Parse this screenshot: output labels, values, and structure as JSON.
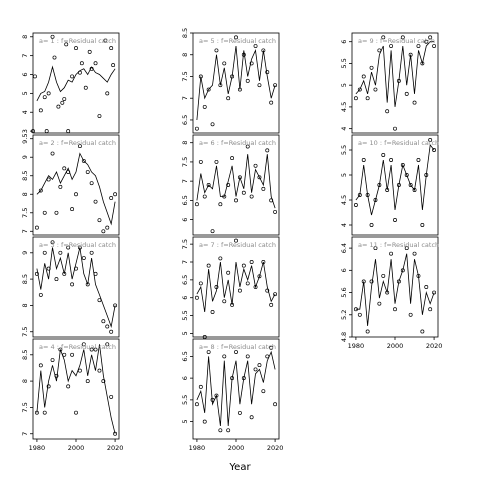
{
  "xlabel": "Year",
  "colors": {
    "axis": "#000000",
    "panel_label": "#8c8c8c",
    "line": "#000000",
    "background": "#ffffff"
  },
  "chart_data": [
    {
      "type": "scatter",
      "title": "a= 1  :  f=Residual catch",
      "xlim": [
        1978,
        2022
      ],
      "ylim": [
        2.9,
        8.2
      ],
      "yticks": [
        3,
        4,
        5,
        6,
        7,
        8
      ],
      "xticks": [],
      "x": [
        1978,
        1979,
        1982,
        1984,
        1985,
        1986,
        1988,
        1989,
        1991,
        1993,
        1994,
        1995,
        1996,
        1998,
        2000,
        2002,
        2003,
        2005,
        2007,
        2008,
        2010,
        2012,
        2015,
        2016,
        2018,
        2019
      ],
      "y": [
        3.0,
        5.9,
        4.1,
        4.8,
        3.0,
        5.0,
        8.0,
        6.9,
        4.3,
        4.5,
        4.7,
        7.6,
        3.0,
        5.9,
        7.4,
        6.1,
        6.6,
        5.3,
        7.2,
        6.3,
        6.6,
        3.8,
        7.8,
        5.0,
        7.4,
        6.5
      ],
      "fit_x": [
        1980,
        1982,
        1984,
        1986,
        1988,
        1990,
        1992,
        1994,
        1996,
        1998,
        2000,
        2002,
        2004,
        2006,
        2008,
        2010,
        2012,
        2014,
        2016,
        2018,
        2020
      ],
      "fit_y": [
        4.6,
        5.0,
        5.1,
        5.6,
        6.4,
        5.6,
        5.1,
        5.3,
        5.7,
        5.6,
        6.0,
        6.2,
        6.3,
        6.0,
        6.4,
        6.1,
        6.0,
        5.8,
        5.6,
        6.0,
        6.3
      ]
    },
    {
      "type": "scatter",
      "title": "a= 2  :  f=Residual catch",
      "xlim": [
        1978,
        2022
      ],
      "ylim": [
        6.9,
        9.6
      ],
      "yticks": [
        7.0,
        7.5,
        8.0,
        8.5,
        9.0,
        9.5
      ],
      "xticks": [],
      "x": [
        1980,
        1982,
        1984,
        1986,
        1988,
        1990,
        1992,
        1994,
        1996,
        1998,
        2000,
        2002,
        2004,
        2006,
        2008,
        2010,
        2012,
        2014,
        2016,
        2018,
        2020
      ],
      "y": [
        7.1,
        8.1,
        7.5,
        8.4,
        9.1,
        7.5,
        8.2,
        8.7,
        8.6,
        7.6,
        8.0,
        9.3,
        8.9,
        8.6,
        8.3,
        7.8,
        7.3,
        7.0,
        7.1,
        7.9,
        8.0
      ],
      "fit_x": [
        1980,
        1982,
        1984,
        1986,
        1988,
        1990,
        1992,
        1994,
        1996,
        1998,
        2000,
        2002,
        2004,
        2006,
        2008,
        2010,
        2012,
        2014,
        2016,
        2018,
        2020
      ],
      "fit_y": [
        8.0,
        8.1,
        8.3,
        8.5,
        8.4,
        8.6,
        8.3,
        8.5,
        8.7,
        8.4,
        8.6,
        9.1,
        8.9,
        8.8,
        8.6,
        8.5,
        8.2,
        7.8,
        7.5,
        7.2,
        7.8
      ]
    },
    {
      "type": "scatter",
      "title": "a= 3  :  f=Residual catch",
      "xlim": [
        1978,
        2022
      ],
      "ylim": [
        7.4,
        9.3
      ],
      "yticks": [
        7.5,
        8.0,
        8.5,
        9.0
      ],
      "xticks": [],
      "x": [
        1980,
        1982,
        1984,
        1986,
        1988,
        1990,
        1992,
        1994,
        1996,
        1998,
        2000,
        2002,
        2004,
        2006,
        2008,
        2010,
        2012,
        2014,
        2016,
        2018,
        2020
      ],
      "y": [
        8.6,
        8.2,
        9.0,
        8.7,
        9.2,
        8.5,
        9.0,
        8.6,
        9.1,
        8.4,
        8.7,
        9.1,
        8.9,
        8.4,
        9.0,
        8.6,
        8.1,
        7.7,
        7.6,
        7.5,
        8.0
      ],
      "fit_x": [
        1980,
        1982,
        1984,
        1986,
        1988,
        1990,
        1992,
        1994,
        1996,
        1998,
        2000,
        2002,
        2004,
        2006,
        2008,
        2010,
        2012,
        2014,
        2016,
        2018,
        2020
      ],
      "fit_y": [
        8.7,
        8.3,
        8.8,
        8.5,
        9.1,
        8.7,
        8.9,
        8.6,
        9.0,
        8.5,
        8.8,
        9.1,
        8.6,
        8.4,
        8.9,
        8.4,
        8.2,
        8.0,
        7.8,
        7.6,
        8.0
      ]
    },
    {
      "type": "scatter",
      "title": "a= 4  :  f=Residual catch",
      "xlim": [
        1978,
        2022
      ],
      "ylim": [
        6.9,
        8.8
      ],
      "yticks": [
        7.0,
        7.5,
        8.0,
        8.5
      ],
      "xticks": [
        1980,
        2000,
        2020
      ],
      "x": [
        1980,
        1982,
        1984,
        1986,
        1988,
        1990,
        1992,
        1994,
        1996,
        1998,
        2000,
        2002,
        2004,
        2006,
        2008,
        2010,
        2012,
        2014,
        2016,
        2018,
        2020
      ],
      "y": [
        7.4,
        8.3,
        7.4,
        7.9,
        8.4,
        8.1,
        8.6,
        8.5,
        7.9,
        8.5,
        7.4,
        8.2,
        8.7,
        8.0,
        8.6,
        8.6,
        8.2,
        8.0,
        8.7,
        7.7,
        7.0
      ],
      "fit_x": [
        1980,
        1982,
        1984,
        1986,
        1988,
        1990,
        1992,
        1994,
        1996,
        1998,
        2000,
        2002,
        2004,
        2006,
        2008,
        2010,
        2012,
        2014,
        2016,
        2018,
        2020
      ],
      "fit_y": [
        7.4,
        8.2,
        7.5,
        8.0,
        8.3,
        8.0,
        8.6,
        8.4,
        8.0,
        8.2,
        8.1,
        8.3,
        8.6,
        8.1,
        8.5,
        8.2,
        8.7,
        8.1,
        7.7,
        7.3,
        7.0
      ]
    },
    {
      "type": "scatter",
      "title": "a= 5  :  f=Residual catch",
      "xlim": [
        1978,
        2022
      ],
      "ylim": [
        6.2,
        8.5
      ],
      "yticks": [
        6.5,
        7.0,
        7.5,
        8.0,
        8.5
      ],
      "xticks": [],
      "x": [
        1980,
        1982,
        1984,
        1986,
        1988,
        1990,
        1992,
        1994,
        1996,
        1998,
        2000,
        2002,
        2004,
        2006,
        2008,
        2010,
        2012,
        2014,
        2016,
        2018,
        2020
      ],
      "y": [
        6.3,
        7.5,
        6.8,
        7.2,
        6.4,
        8.1,
        7.3,
        7.8,
        7.0,
        7.5,
        8.4,
        7.2,
        8.0,
        7.4,
        7.8,
        8.2,
        7.3,
        8.1,
        7.6,
        6.9,
        7.3
      ],
      "fit_x": [
        1980,
        1982,
        1984,
        1986,
        1988,
        1990,
        1992,
        1994,
        1996,
        1998,
        2000,
        2002,
        2004,
        2006,
        2008,
        2010,
        2012,
        2014,
        2016,
        2018,
        2020
      ],
      "fit_y": [
        6.5,
        7.5,
        7.0,
        7.2,
        7.3,
        8.0,
        7.3,
        7.7,
        7.1,
        7.5,
        8.2,
        7.2,
        8.1,
        7.5,
        7.9,
        8.1,
        7.4,
        8.1,
        7.5,
        7.0,
        7.3
      ]
    },
    {
      "type": "scatter",
      "title": "a= 6  :  f=Residual catch",
      "xlim": [
        1978,
        2022
      ],
      "ylim": [
        5.6,
        8.2
      ],
      "yticks": [
        6.0,
        6.5,
        7.0,
        7.5,
        8.0
      ],
      "xticks": [],
      "x": [
        1980,
        1982,
        1984,
        1986,
        1988,
        1990,
        1992,
        1994,
        1996,
        1998,
        2000,
        2002,
        2004,
        2006,
        2008,
        2010,
        2012,
        2014,
        2016,
        2018,
        2020
      ],
      "y": [
        6.4,
        7.5,
        6.6,
        6.9,
        5.7,
        7.5,
        6.4,
        6.6,
        6.9,
        7.6,
        6.5,
        7.1,
        6.7,
        7.9,
        6.6,
        7.4,
        7.1,
        6.8,
        7.8,
        6.5,
        6.2
      ],
      "fit_x": [
        1980,
        1982,
        1984,
        1986,
        1988,
        1990,
        1992,
        1994,
        1996,
        1998,
        2000,
        2002,
        2004,
        2006,
        2008,
        2010,
        2012,
        2014,
        2016,
        2018,
        2020
      ],
      "fit_y": [
        6.5,
        7.2,
        6.7,
        6.9,
        6.8,
        7.4,
        6.6,
        6.6,
        7.0,
        7.4,
        6.6,
        7.1,
        6.8,
        7.7,
        6.7,
        7.3,
        7.1,
        6.9,
        7.7,
        6.6,
        6.3
      ]
    },
    {
      "type": "scatter",
      "title": "a= 7  :  f=Residual catch",
      "xlim": [
        1978,
        2022
      ],
      "ylim": [
        4.9,
        7.7
      ],
      "yticks": [
        5.0,
        5.5,
        6.0,
        6.5,
        7.0,
        7.5
      ],
      "xticks": [],
      "x": [
        1980,
        1982,
        1984,
        1986,
        1988,
        1990,
        1992,
        1994,
        1996,
        1998,
        2000,
        2002,
        2004,
        2006,
        2008,
        2010,
        2012,
        2014,
        2016,
        2018,
        2020
      ],
      "y": [
        6.0,
        6.4,
        4.9,
        6.9,
        5.6,
        6.3,
        7.1,
        5.9,
        6.7,
        5.8,
        7.6,
        6.2,
        6.9,
        6.4,
        7.0,
        6.3,
        6.6,
        7.0,
        6.2,
        5.8,
        6.1
      ],
      "fit_x": [
        1980,
        1982,
        1984,
        1986,
        1988,
        1990,
        1992,
        1994,
        1996,
        1998,
        2000,
        2002,
        2004,
        2006,
        2008,
        2010,
        2012,
        2014,
        2016,
        2018,
        2020
      ],
      "fit_y": [
        6.1,
        6.3,
        5.6,
        6.8,
        5.9,
        6.2,
        7.0,
        6.0,
        6.5,
        5.8,
        7.0,
        6.3,
        6.8,
        6.5,
        6.9,
        6.3,
        6.6,
        7.0,
        6.3,
        5.9,
        6.1
      ]
    },
    {
      "type": "scatter",
      "title": "a= 8  :  f=Residual catch",
      "xlim": [
        1978,
        2022
      ],
      "ylim": [
        4.6,
        6.9
      ],
      "yticks": [
        5.0,
        5.5,
        6.0,
        6.5
      ],
      "xticks": [
        1980,
        2000,
        2020
      ],
      "x": [
        1980,
        1982,
        1984,
        1986,
        1988,
        1990,
        1992,
        1994,
        1996,
        1998,
        2000,
        2002,
        2004,
        2006,
        2008,
        2010,
        2012,
        2014,
        2016,
        2018,
        2020
      ],
      "y": [
        5.4,
        5.8,
        5.0,
        6.6,
        5.5,
        5.6,
        4.8,
        6.5,
        4.8,
        6.0,
        6.6,
        5.2,
        6.0,
        6.5,
        5.1,
        6.2,
        6.3,
        5.7,
        6.5,
        6.7,
        5.4
      ],
      "fit_x": [
        1980,
        1982,
        1984,
        1986,
        1988,
        1990,
        1992,
        1994,
        1996,
        1998,
        2000,
        2002,
        2004,
        2006,
        2008,
        2010,
        2012,
        2014,
        2016,
        2018,
        2020
      ],
      "fit_y": [
        5.5,
        5.7,
        5.2,
        6.5,
        5.4,
        5.6,
        4.9,
        6.4,
        4.9,
        6.0,
        6.4,
        5.4,
        6.0,
        6.4,
        5.4,
        6.1,
        6.2,
        5.9,
        6.4,
        6.6,
        6.2
      ]
    },
    {
      "type": "scatter",
      "title": "a= 9  :  f=Residual catch",
      "xlim": [
        1978,
        2022
      ],
      "ylim": [
        3.9,
        6.2
      ],
      "yticks": [
        4.0,
        4.5,
        5.0,
        5.5,
        6.0
      ],
      "xticks": [],
      "x": [
        1980,
        1982,
        1984,
        1986,
        1988,
        1990,
        1992,
        1994,
        1996,
        1998,
        2000,
        2002,
        2004,
        2006,
        2008,
        2010,
        2012,
        2014,
        2016,
        2018,
        2020
      ],
      "y": [
        4.7,
        4.9,
        5.2,
        4.7,
        5.4,
        4.9,
        5.8,
        6.1,
        4.4,
        5.9,
        4.0,
        5.1,
        6.1,
        4.8,
        5.7,
        4.6,
        5.9,
        5.5,
        6.0,
        6.1,
        5.9
      ],
      "fit_x": [
        1980,
        1982,
        1984,
        1986,
        1988,
        1990,
        1992,
        1994,
        1996,
        1998,
        2000,
        2002,
        2004,
        2006,
        2008,
        2010,
        2012,
        2014,
        2016,
        2018,
        2020
      ],
      "fit_y": [
        4.8,
        4.9,
        5.1,
        4.8,
        5.3,
        5.0,
        5.7,
        5.9,
        4.6,
        5.8,
        4.5,
        5.1,
        5.9,
        5.0,
        5.7,
        4.8,
        5.8,
        5.5,
        5.9,
        6.0,
        6.0
      ]
    },
    {
      "type": "scatter",
      "title": "a= 10  :  f=Residual catch",
      "xlim": [
        1978,
        2022
      ],
      "ylim": [
        3.8,
        5.8
      ],
      "yticks": [
        4.0,
        4.5,
        5.0,
        5.5
      ],
      "xticks": [],
      "x": [
        1980,
        1982,
        1984,
        1986,
        1988,
        1990,
        1992,
        1994,
        1996,
        1998,
        2000,
        2002,
        2004,
        2006,
        2008,
        2010,
        2012,
        2014,
        2016,
        2018,
        2020
      ],
      "y": [
        4.4,
        4.6,
        5.3,
        4.6,
        4.0,
        4.5,
        4.8,
        5.4,
        4.7,
        5.3,
        4.1,
        4.8,
        5.2,
        5.0,
        4.8,
        4.7,
        5.3,
        4.0,
        5.0,
        5.7,
        5.5
      ],
      "fit_x": [
        1980,
        1982,
        1984,
        1986,
        1988,
        1990,
        1992,
        1994,
        1996,
        1998,
        2000,
        2002,
        2004,
        2006,
        2008,
        2010,
        2012,
        2014,
        2016,
        2018,
        2020
      ],
      "fit_y": [
        4.5,
        4.6,
        5.2,
        4.6,
        4.2,
        4.5,
        4.8,
        5.3,
        4.7,
        5.2,
        4.3,
        4.8,
        5.2,
        5.0,
        4.8,
        4.7,
        5.2,
        4.3,
        5.0,
        5.6,
        5.5
      ]
    },
    {
      "type": "scatter",
      "title": "a= 11  :  f=Residual catch",
      "xlim": [
        1978,
        2022
      ],
      "ylim": [
        4.8,
        6.6
      ],
      "yticks": [
        4.8,
        5.2,
        5.6,
        6.0,
        6.4
      ],
      "xticks": [
        1980,
        2000,
        2020
      ],
      "x": [
        1980,
        1982,
        1984,
        1986,
        1988,
        1990,
        1992,
        1994,
        1996,
        1998,
        2000,
        2002,
        2004,
        2006,
        2008,
        2010,
        2012,
        2014,
        2016,
        2018,
        2020
      ],
      "y": [
        5.3,
        5.2,
        5.8,
        4.9,
        5.8,
        6.4,
        5.4,
        5.9,
        5.6,
        6.3,
        5.3,
        5.8,
        6.0,
        6.4,
        5.2,
        6.3,
        5.9,
        4.9,
        5.7,
        5.3,
        5.6
      ],
      "fit_x": [
        1980,
        1982,
        1984,
        1986,
        1988,
        1990,
        1992,
        1994,
        1996,
        1998,
        2000,
        2002,
        2004,
        2006,
        2008,
        2010,
        2012,
        2014,
        2016,
        2018,
        2020
      ],
      "fit_y": [
        5.3,
        5.3,
        5.8,
        5.0,
        5.7,
        6.2,
        5.5,
        5.8,
        5.6,
        6.2,
        5.4,
        5.8,
        6.0,
        6.3,
        5.4,
        6.2,
        5.9,
        5.2,
        5.6,
        5.4,
        5.6
      ]
    }
  ]
}
